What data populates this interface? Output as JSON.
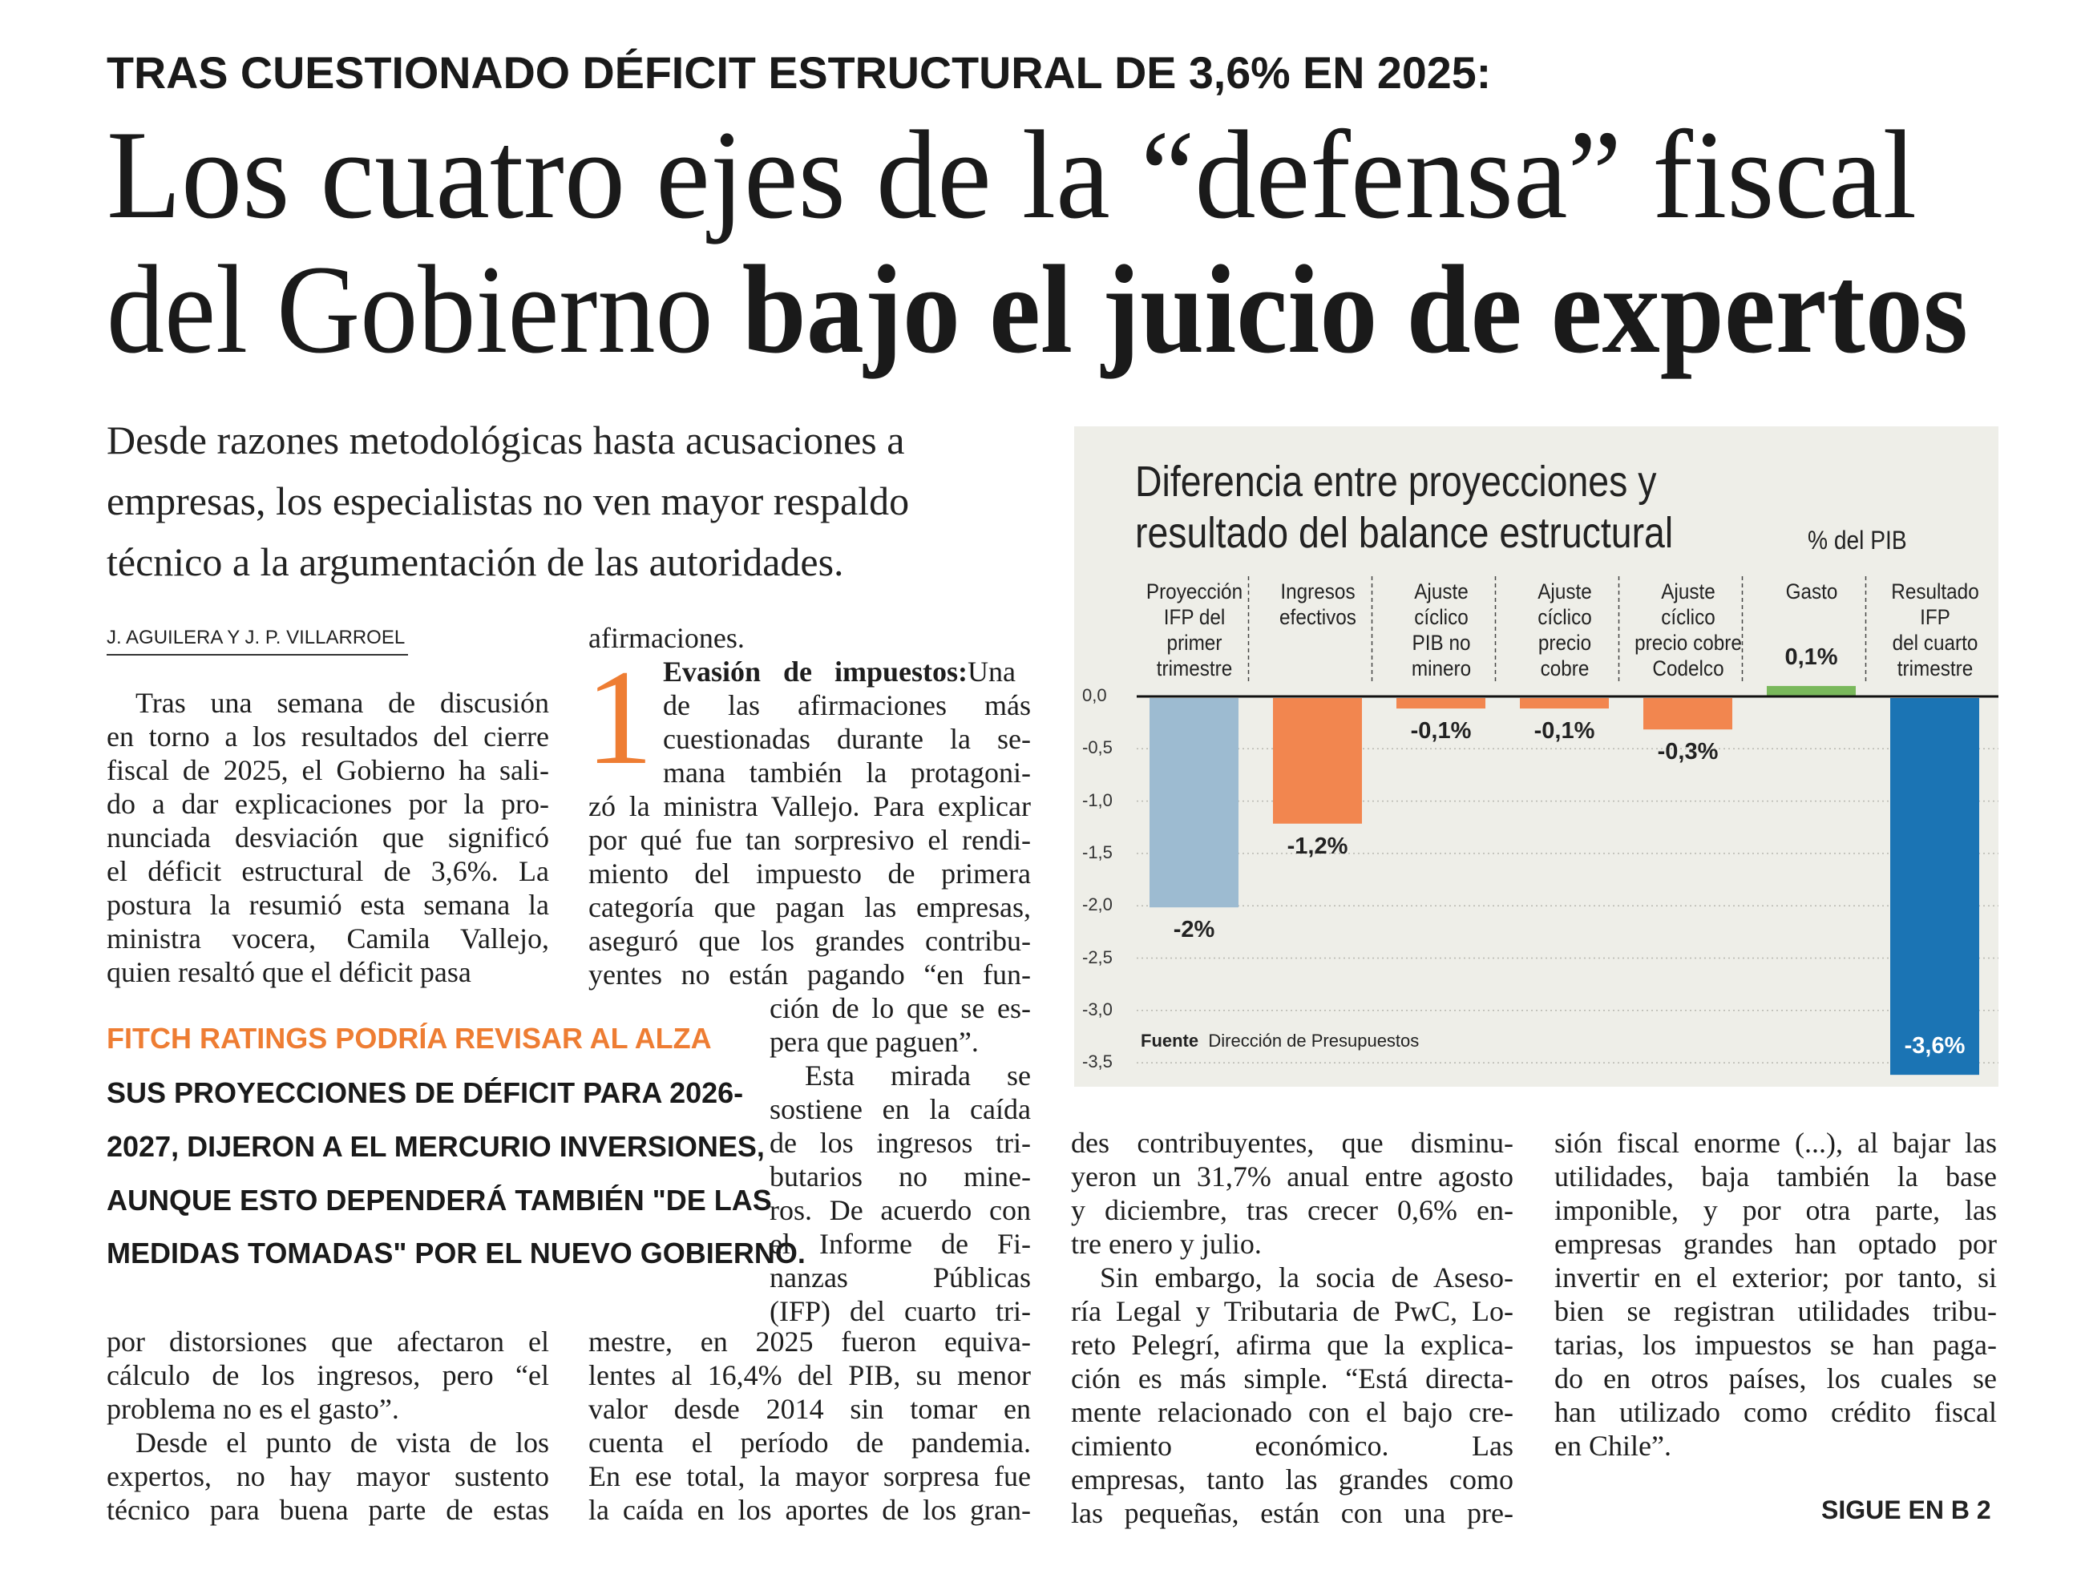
{
  "kicker": "TRAS CUESTIONADO DÉFICIT ESTRUCTURAL DE 3,6% EN 2025:",
  "headline": {
    "line1": "Los cuatro ejes de la “defensa” fiscal",
    "line2_regular": "del Gobierno ",
    "line2_bold": "bajo el juicio de expertos"
  },
  "deck": [
    "Desde razones metodológicas hasta acusaciones a",
    "empresas, los especialistas no ven mayor respaldo",
    "técnico a la argumentación de las autoridades."
  ],
  "byline": "J. AGUILERA Y J. P. VILLARROEL",
  "sidebar": {
    "orange": "FITCH RATINGS PODRÍA REVISAR AL ALZA",
    "lines": [
      "SUS PROYECCIONES DE DÉFICIT PARA 2026-",
      "2027, DIJERON A EL MERCURIO INVERSIONES,",
      "AUNQUE ESTO DEPENDERÁ TAMBIÉN \"DE LAS",
      "MEDIDAS TOMADAS\" POR EL NUEVO GOBIERNO."
    ]
  },
  "dropcap": "1",
  "subhead_bold": "Evasión de impuestos:",
  "columns": {
    "col1_top": [
      "Tras una semana de discusión",
      "en torno a los resultados del cierre",
      "fiscal de 2025, el Gobierno ha sali-",
      "do a dar explicaciones por la pro-",
      "nunciada desviación que significó",
      "el déficit estructural de 3,6%. La",
      "postura la resumió esta semana la",
      "ministra vocera, Camila Vallejo,",
      "quien resaltó que el déficit pasa"
    ],
    "col1_bottom": [
      "por distorsiones que afectaron el",
      "cálculo de los ingresos, pero “el",
      "problema no es el gasto”.",
      "Desde el punto de vista de los",
      "expertos, no hay mayor sustento",
      "técnico para buena parte de estas"
    ],
    "col2_first": "afirmaciones.",
    "col2_narrow": [
      " Una",
      "de las afirmaciones más",
      "cuestionadas durante la se-",
      "mana también la protagoni-"
    ],
    "col2_full_a": [
      "zó la ministra Vallejo. Para explicar",
      "por qué fue tan sorpresivo el rendi-",
      "miento del impuesto de primera",
      "categoría que pagan las empresas,",
      "aseguró que los grandes contribu-",
      "yentes no están pagando “en fun-"
    ],
    "col2_narrow_b": [
      "ción de lo que se es-",
      "pera que paguen”.",
      "Esta mirada se",
      "sostiene en la caída",
      "de los ingresos tri-",
      "butarios no mine-",
      "ros. De acuerdo con",
      "el Informe de Fi-",
      "nanzas Públicas",
      "(IFP) del cuarto tri-"
    ],
    "col2_full_b": [
      "mestre, en 2025 fueron equiva-",
      "lentes al 16,4% del PIB, su menor",
      "valor desde 2014 sin tomar en",
      "cuenta el período de pandemia.",
      "En ese total, la mayor sorpresa fue",
      "la caída en los aportes de los gran-"
    ],
    "col3": [
      "des contribuyentes, que disminu-",
      "yeron un 31,7% anual entre agosto",
      "y diciembre, tras crecer 0,6% en-",
      "tre enero y julio.",
      "Sin embargo, la socia de Aseso-",
      "ría Legal y Tributaria de PwC, Lo-",
      "reto Pelegrí, afirma que la explica-",
      "ción es más simple. “Está directa-",
      "mente relacionado con el bajo cre-",
      "cimiento económico. Las",
      "empresas, tanto las grandes como",
      "las pequeñas, están con una pre-"
    ],
    "col4": [
      "sión fiscal enorme (...), al bajar las",
      "utilidades, baja también la base",
      "imponible, y por otra parte, las",
      "empresas grandes han optado por",
      "invertir en el exterior; por tanto, si",
      "bien se registran utilidades tribu-",
      "tarias, los impuestos se han paga-",
      "do en otros países, los cuales se",
      "han utilizado como crédito fiscal",
      "en Chile”."
    ]
  },
  "continued": "SIGUE EN B 2",
  "chart_data": {
    "type": "bar",
    "title": [
      "Diferencia entre proyecciones y",
      "resultado del balance estructural"
    ],
    "unit": "% del PIB",
    "categories": [
      [
        "Proyección",
        "IFP del",
        "primer",
        "trimestre"
      ],
      [
        "Ingresos",
        "efectivos"
      ],
      [
        "Ajuste",
        "cíclico",
        "PIB no",
        "minero"
      ],
      [
        "Ajuste",
        "cíclico",
        "precio",
        "cobre"
      ],
      [
        "Ajuste",
        "cíclico",
        "precio cobre",
        "Codelco"
      ],
      [
        "Gasto"
      ],
      [
        "Resultado",
        "IFP",
        "del cuarto",
        "trimestre"
      ]
    ],
    "values": [
      -2.0,
      -1.2,
      -0.1,
      -0.1,
      -0.3,
      0.1,
      -3.6
    ],
    "labels": [
      "-2%",
      "-1,2%",
      "-0,1%",
      "-0,1%",
      "-0,3%",
      "0,1%",
      "-3,6%"
    ],
    "colors": [
      "#9dbbd1",
      "#f2864f",
      "#f2864f",
      "#f2864f",
      "#f2864f",
      "#79b85b",
      "#1b74b4"
    ],
    "yticks": [
      "0,0",
      "-0,5",
      "-1,0",
      "-1,5",
      "-2,0",
      "-2,5",
      "-3,0",
      "-3,5"
    ],
    "ylim": [
      -3.5,
      0.1
    ],
    "source_label": "Fuente",
    "source": "Dirección de Presupuestos"
  }
}
